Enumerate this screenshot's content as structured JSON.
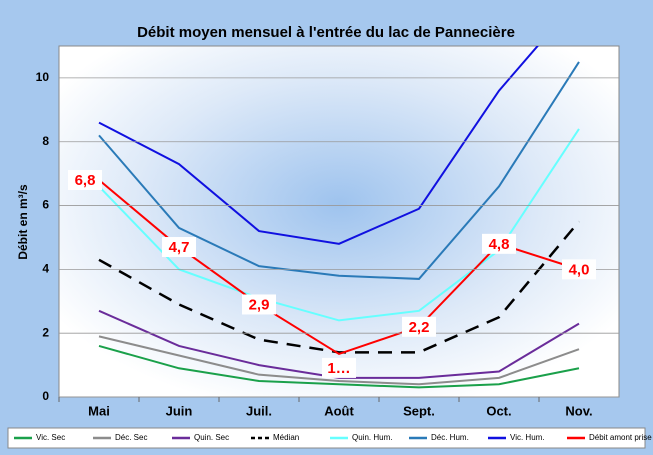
{
  "chart_data": {
    "type": "line",
    "title": "Débit moyen mensuel à l'entrée du lac de Pannecière",
    "y_label": "Débit en m³/s",
    "categories": [
      "Mai",
      "Juin",
      "Juil.",
      "Août",
      "Sept.",
      "Oct.",
      "Nov."
    ],
    "ylim": [
      0,
      11
    ],
    "yticks": [
      0,
      2,
      4,
      6,
      8,
      10
    ],
    "grid": true,
    "series": [
      {
        "name": "Vic. Sec",
        "color": "#1aa04a",
        "values": [
          1.6,
          0.9,
          0.5,
          0.4,
          0.3,
          0.4,
          0.9
        ]
      },
      {
        "name": "Déc. Sec",
        "color": "#8c8c8c",
        "values": [
          1.9,
          1.3,
          0.7,
          0.5,
          0.4,
          0.6,
          1.5
        ]
      },
      {
        "name": "Quin. Sec",
        "color": "#6a2c9a",
        "values": [
          2.7,
          1.6,
          1.0,
          0.6,
          0.6,
          0.8,
          2.3
        ]
      },
      {
        "name": "Médian",
        "color": "#000000",
        "dash": true,
        "values": [
          4.3,
          2.9,
          1.8,
          1.4,
          1.4,
          2.5,
          5.5
        ]
      },
      {
        "name": "Quin. Hum.",
        "color": "#66ffff",
        "values": [
          6.6,
          4.0,
          3.1,
          2.4,
          2.7,
          4.6,
          8.4
        ]
      },
      {
        "name": "Déc. Hum.",
        "color": "#2a7ab8",
        "values": [
          8.2,
          5.3,
          4.1,
          3.8,
          3.7,
          6.6,
          10.5
        ]
      },
      {
        "name": "Vic. Hum.",
        "color": "#1010e0",
        "values": [
          8.6,
          7.3,
          5.2,
          4.8,
          5.9,
          9.6,
          12.5
        ]
      },
      {
        "name": "Débit amont prise",
        "color": "#ff0000",
        "values": [
          6.8,
          4.7,
          2.9,
          1.35,
          2.2,
          4.8,
          4.0
        ],
        "value_labels": [
          "6,8",
          "4,7",
          "2,9",
          "1…",
          "2,2",
          "4,8",
          "4,0"
        ]
      }
    ]
  }
}
